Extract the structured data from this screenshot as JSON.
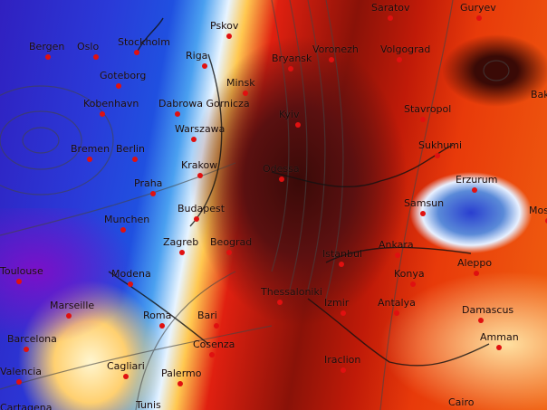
{
  "map": {
    "type": "temperature anomaly weather map",
    "colors": {
      "cold": "#2a3ad8",
      "very_cold": "#7a10c8",
      "neutral": "#e8f4ff",
      "warm": "#ffc850",
      "hot": "#e02010",
      "very_hot": "#5a1010",
      "city_dot": "#e01010"
    },
    "cities": [
      "Bergen",
      "Oslo",
      "Stockholm",
      "Pskov",
      "Riga",
      "Goteborg",
      "Minsk",
      "Kobenhavn",
      "Dabrowa Gornicza",
      "Warszawa",
      "Bremen",
      "Berlin",
      "Krakow",
      "Praha",
      "Budapest",
      "Munchen",
      "Zagreb",
      "Beograd",
      "Toulouse",
      "Modena",
      "Marseille",
      "Roma",
      "Barcelona",
      "Bari",
      "Cosenza",
      "Cagliari",
      "Palermo",
      "Valencia",
      "Tunis",
      "Cartagena",
      "Saratov",
      "Guryev",
      "Voronezh",
      "Volgograd",
      "Bryansk",
      "Kyiv",
      "Stavropol",
      "Sukhumi",
      "Baku",
      "Erzurum",
      "Samsun",
      "Mosul",
      "Odessa",
      "Ankara",
      "Istanbul",
      "Konya",
      "Aleppo",
      "Izmir",
      "Antalya",
      "Damascus",
      "Amman",
      "Iraclion",
      "Cairo",
      "Thessaloniki"
    ]
  }
}
